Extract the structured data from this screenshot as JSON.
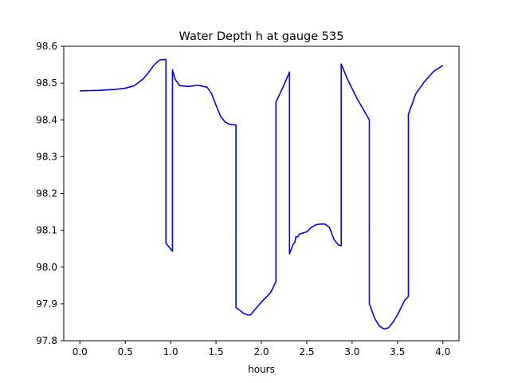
{
  "chart_data": {
    "type": "line",
    "title": "Water Depth h at gauge 535",
    "xlabel": "hours",
    "ylabel": "",
    "xlim": [
      -0.178,
      4.178
    ],
    "ylim": [
      97.8,
      98.6
    ],
    "grid": false,
    "legend": "none",
    "xticks": [
      "0.0",
      "0.5",
      "1.0",
      "1.5",
      "2.0",
      "2.5",
      "3.0",
      "3.5",
      "4.0"
    ],
    "xtick_values": [
      0.0,
      0.5,
      1.0,
      1.5,
      2.0,
      2.5,
      3.0,
      3.5,
      4.0
    ],
    "yticks": [
      "97.8",
      "97.9",
      "98.0",
      "98.1",
      "98.2",
      "98.3",
      "98.4",
      "98.5",
      "98.6"
    ],
    "ytick_values": [
      97.8,
      97.9,
      98.0,
      98.1,
      98.2,
      98.3,
      98.4,
      98.5,
      98.6
    ],
    "series": [
      {
        "color": "#0000ff",
        "x": [
          0.0,
          0.2,
          0.4,
          0.5,
          0.6,
          0.7,
          0.76,
          0.82,
          0.88,
          0.92,
          0.948,
          0.948,
          1.02,
          1.02,
          1.05,
          1.1,
          1.2,
          1.3,
          1.4,
          1.45,
          1.5,
          1.55,
          1.6,
          1.65,
          1.72,
          1.72,
          1.75,
          1.8,
          1.85,
          1.88,
          1.92,
          2.0,
          2.1,
          2.15,
          2.16,
          2.16,
          2.24,
          2.31,
          2.31,
          2.35,
          2.37,
          2.38,
          2.4,
          2.42,
          2.45,
          2.5,
          2.55,
          2.6,
          2.65,
          2.7,
          2.75,
          2.8,
          2.85,
          2.88,
          2.88,
          2.95,
          3.05,
          3.12,
          3.19,
          3.19,
          3.25,
          3.3,
          3.35,
          3.4,
          3.45,
          3.5,
          3.58,
          3.62,
          3.62,
          3.7,
          3.8,
          3.9,
          4.0
        ],
        "y": [
          98.479,
          98.48,
          98.483,
          98.486,
          98.493,
          98.512,
          98.53,
          98.55,
          98.563,
          98.564,
          98.564,
          98.065,
          98.043,
          98.536,
          98.51,
          98.493,
          98.491,
          98.494,
          98.489,
          98.472,
          98.44,
          98.41,
          98.394,
          98.388,
          98.386,
          97.89,
          97.885,
          97.875,
          97.87,
          97.87,
          97.882,
          97.905,
          97.93,
          97.955,
          97.96,
          98.448,
          98.49,
          98.53,
          98.036,
          98.062,
          98.068,
          98.082,
          98.082,
          98.09,
          98.092,
          98.096,
          98.108,
          98.115,
          98.117,
          98.117,
          98.108,
          98.075,
          98.06,
          98.058,
          98.552,
          98.51,
          98.46,
          98.43,
          98.4,
          97.9,
          97.86,
          97.84,
          97.832,
          97.835,
          97.85,
          97.87,
          97.91,
          97.92,
          98.415,
          98.47,
          98.505,
          98.532,
          98.548
        ]
      }
    ]
  }
}
